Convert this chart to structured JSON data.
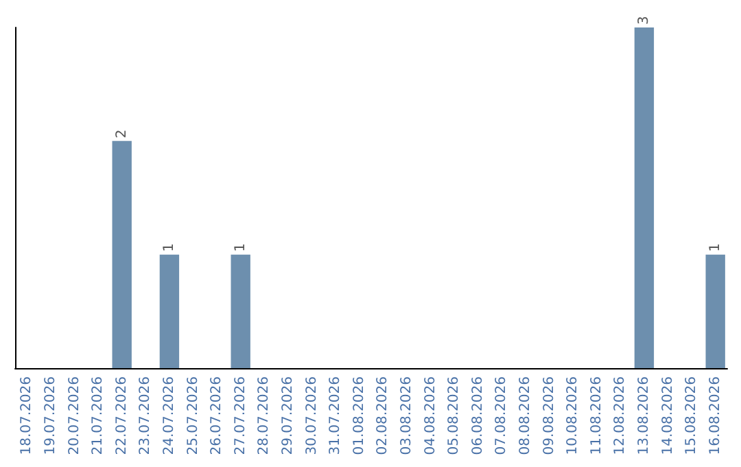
{
  "chart_data": {
    "type": "bar",
    "categories": [
      "18.07.2026",
      "19.07.2026",
      "20.07.2026",
      "21.07.2026",
      "22.07.2026",
      "23.07.2026",
      "24.07.2026",
      "25.07.2026",
      "26.07.2026",
      "27.07.2026",
      "28.07.2026",
      "29.07.2026",
      "30.07.2026",
      "31.07.2026",
      "01.08.2026",
      "02.08.2026",
      "03.08.2026",
      "04.08.2026",
      "05.08.2026",
      "06.08.2026",
      "07.08.2026",
      "08.08.2026",
      "09.08.2026",
      "10.08.2026",
      "11.08.2026",
      "12.08.2026",
      "13.08.2026",
      "14.08.2026",
      "15.08.2026",
      "16.08.2026"
    ],
    "values": [
      0,
      0,
      0,
      0,
      2,
      0,
      1,
      0,
      0,
      1,
      0,
      0,
      0,
      0,
      0,
      0,
      0,
      0,
      0,
      0,
      0,
      0,
      0,
      0,
      0,
      0,
      3,
      0,
      0,
      1
    ],
    "value_labels": [
      null,
      null,
      null,
      null,
      "2",
      null,
      "1",
      null,
      null,
      "1",
      null,
      null,
      null,
      null,
      null,
      null,
      null,
      null,
      null,
      null,
      null,
      null,
      null,
      null,
      null,
      null,
      "3",
      null,
      null,
      "1"
    ],
    "color": "#6d8fae",
    "ylim": [
      0,
      3
    ],
    "tick_labels": "x",
    "grid": false
  }
}
